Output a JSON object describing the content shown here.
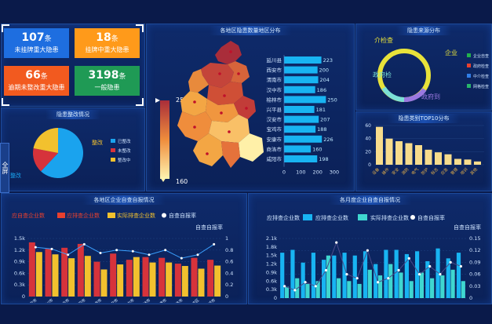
{
  "kpis": [
    {
      "value": "107",
      "unit": "条",
      "label": "未挂牌重大隐患",
      "color": "#1e6ee0"
    },
    {
      "value": "18",
      "unit": "条",
      "label": "挂牌中重大隐患",
      "color": "#ff9a1a"
    },
    {
      "value": "66",
      "unit": "条",
      "label": "逾期未整改重大隐患",
      "color": "#f25a1f"
    },
    {
      "value": "3198",
      "unit": "条",
      "label": "一般隐患",
      "color": "#1f9a55"
    }
  ],
  "panels": {
    "map": "各地区隐患数量地区分布",
    "source": "隐患来源分布",
    "rect": "隐患整改情况",
    "type": "隐患类别TOP10分布",
    "regionSelf": "各地区企业自查自报情况",
    "monthSelf": "各月度企业自查自报情况"
  },
  "side_tab": "全屏",
  "map_legend": {
    "max": "250",
    "min": "160"
  },
  "region_bars": {
    "regions": [
      "延川县",
      "西安市",
      "渭南市",
      "汉中市",
      "榆林市",
      "兴平县",
      "汉安市",
      "宝鸡市",
      "安康市",
      "商洛市",
      "咸阳市"
    ],
    "values": [
      223,
      200,
      204,
      186,
      250,
      181,
      207,
      188,
      226,
      160,
      198
    ],
    "ticks": [
      "0",
      "100",
      "200",
      "300"
    ]
  },
  "source_legend": [
    "企业自查",
    "政府检查",
    "中介检查",
    "网格检查"
  ],
  "source_labels": {
    "a": "企业",
    "b": "介检查",
    "c": "政府检",
    "d": "政府到"
  },
  "pie": {
    "legend": [
      "已整改",
      "未整改",
      "整改中"
    ],
    "values": [
      62,
      16,
      22
    ],
    "labels": {
      "a": "整改",
      "b": "整改"
    },
    "colors": [
      "#1aa3ee",
      "#d6333b",
      "#f2c12e"
    ]
  },
  "type_chart": {
    "values": [
      58,
      40,
      36,
      33,
      30,
      23,
      19,
      16,
      9,
      8,
      5
    ],
    "labels": [
      "设备",
      "操作",
      "安全",
      "消防",
      "电气",
      "防护",
      "标志",
      "应急",
      "管理",
      "培训",
      "其他"
    ],
    "yticks": [
      "60",
      "40",
      "20",
      "0"
    ]
  },
  "region_self": {
    "legend": [
      "应自查企业数",
      "应排查企业数",
      "实际排查企业数",
      "自查自报率"
    ],
    "ylabel_left": "应排查企业数",
    "ylabel_right": "自查自报率",
    "yticks_left": [
      "1.5k",
      "1.2k",
      "0.9k",
      "0.6k",
      "0.3k",
      "0"
    ],
    "yticks_right": [
      "1",
      "0.8",
      "0.6",
      "0.4",
      "0.2",
      "0"
    ],
    "xlabels": [
      "西安市",
      "铜川市",
      "宝鸡市",
      "咸阳市",
      "渭南市",
      "延安市",
      "汉中市",
      "榆林市",
      "安康市",
      "商洛市",
      "杨凌区",
      "韩城市"
    ],
    "red": [
      1400,
      1230,
      1260,
      1360,
      900,
      1110,
      950,
      1020,
      1000,
      850,
      1000,
      950
    ],
    "yellow": [
      1150,
      1090,
      990,
      1050,
      700,
      830,
      1020,
      880,
      880,
      790,
      720,
      800
    ],
    "rate": [
      0.85,
      0.82,
      0.72,
      0.9,
      0.75,
      0.8,
      0.78,
      0.72,
      0.8,
      0.66,
      0.72,
      0.9
    ]
  },
  "month_self": {
    "legend": [
      "应排查企业数",
      "实际排查企业数",
      "自查自报率"
    ],
    "ylabel_left": "应排查企业数",
    "ylabel_right": "自查自报率",
    "yticks_left": [
      "2.1k",
      "1.8k",
      "1.5k",
      "1.2k",
      "0.9k",
      "0.6k",
      "0.3k",
      "0"
    ],
    "yticks_right": [
      "0.15",
      "0.12",
      "0.09",
      "0.06",
      "0.03",
      "0"
    ],
    "blue": [
      1600,
      1700,
      1250,
      1600,
      1350,
      1500,
      1600,
      1500,
      1650,
      1200,
      1700,
      1700,
      1550,
      1650,
      1300,
      1750,
      1400,
      1600
    ],
    "cyan": [
      400,
      700,
      500,
      600,
      1500,
      700,
      600,
      500,
      1000,
      800,
      1200,
      900,
      600,
      900,
      700,
      800,
      1000,
      600
    ],
    "rate": [
      0.03,
      0.02,
      0.04,
      0.03,
      0.07,
      0.14,
      0.06,
      0.05,
      0.12,
      0.04,
      0.05,
      0.07,
      0.1,
      0.06,
      0.08,
      0.06,
      0.09,
      0.08
    ]
  }
}
